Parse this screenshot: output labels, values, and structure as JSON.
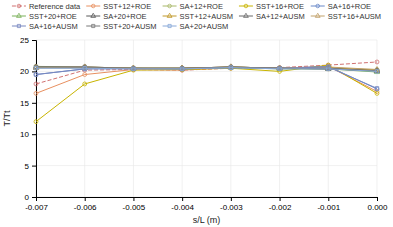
{
  "chart_data": {
    "type": "line",
    "x_label": "s/L (m)",
    "y_label": "T/Tt",
    "x": [
      -0.007,
      -0.006,
      -0.005,
      -0.004,
      -0.003,
      -0.002,
      -0.001,
      0.0
    ],
    "xlim": [
      -0.007,
      0.0
    ],
    "ylim": [
      0,
      25
    ],
    "xticks": [
      -0.007,
      -0.006,
      -0.005,
      -0.004,
      -0.003,
      -0.002,
      -0.001,
      {
        "value": 0,
        "label": "0.000"
      }
    ],
    "yticks": [
      0,
      5,
      10,
      15,
      20,
      25
    ],
    "grid": true,
    "legend": "top",
    "series": [
      {
        "name": "Reference data",
        "color": "#d07070",
        "marker": "circle",
        "line_style": "dashed",
        "values": [
          18.0,
          20.2,
          20.3,
          20.2,
          20.5,
          20.6,
          21.0,
          21.5
        ]
      },
      {
        "name": "SST+12+ROE",
        "color": "#e89060",
        "marker": "circle",
        "line_style": "solid",
        "values": [
          16.5,
          19.5,
          20.3,
          20.2,
          20.6,
          20.5,
          20.8,
          16.8
        ]
      },
      {
        "name": "SA+12+ROE",
        "color": "#a8b868",
        "marker": "circle",
        "line_style": "solid",
        "values": [
          20.8,
          20.7,
          20.5,
          20.3,
          20.7,
          20.5,
          20.4,
          20.3
        ]
      },
      {
        "name": "SST+16+ROE",
        "color": "#c8b400",
        "marker": "circle",
        "line_style": "solid",
        "values": [
          12.0,
          18.0,
          20.2,
          20.3,
          20.5,
          20.0,
          21.0,
          16.5
        ]
      },
      {
        "name": "SA+16+ROE",
        "color": "#6888c8",
        "marker": "circle",
        "line_style": "solid",
        "values": [
          19.5,
          20.4,
          20.5,
          20.4,
          20.6,
          20.5,
          20.8,
          17.2
        ]
      },
      {
        "name": "SST+20+ROE",
        "color": "#78b058",
        "marker": "triangle",
        "line_style": "solid",
        "values": [
          20.6,
          20.6,
          20.5,
          20.5,
          20.6,
          20.4,
          20.4,
          19.9
        ]
      },
      {
        "name": "SA+20+ROE",
        "color": "#585858",
        "marker": "triangle",
        "line_style": "solid",
        "values": [
          20.7,
          20.7,
          20.5,
          20.5,
          20.7,
          20.5,
          20.4,
          20.1
        ]
      },
      {
        "name": "SST+12+AUSM",
        "color": "#c09828",
        "marker": "triangle",
        "line_style": "solid",
        "values": [
          20.6,
          20.6,
          20.5,
          20.5,
          20.7,
          20.5,
          20.6,
          20.2
        ]
      },
      {
        "name": "SA+12+AUSM",
        "color": "#686868",
        "marker": "triangle",
        "line_style": "solid",
        "values": [
          20.6,
          20.6,
          20.5,
          20.5,
          20.7,
          20.5,
          20.5,
          20.1
        ]
      },
      {
        "name": "SST+16+AUSM",
        "color": "#c0a068",
        "marker": "triangle",
        "line_style": "solid",
        "values": [
          20.6,
          20.7,
          20.5,
          20.5,
          20.7,
          20.5,
          20.7,
          20.3
        ]
      },
      {
        "name": "SA+16+AUSM",
        "color": "#7888c0",
        "marker": "square",
        "line_style": "solid",
        "values": [
          19.5,
          20.4,
          20.4,
          20.4,
          20.6,
          20.5,
          20.7,
          17.3
        ]
      },
      {
        "name": "SST+20+AUSM",
        "color": "#787878",
        "marker": "square",
        "line_style": "solid",
        "values": [
          20.7,
          20.7,
          20.5,
          20.5,
          20.7,
          20.5,
          20.4,
          20.1
        ]
      },
      {
        "name": "SA+20+AUSM",
        "color": "#88a8d8",
        "marker": "square",
        "line_style": "solid",
        "values": [
          20.5,
          20.5,
          20.4,
          20.4,
          20.6,
          20.4,
          20.4,
          20.0
        ]
      }
    ]
  }
}
